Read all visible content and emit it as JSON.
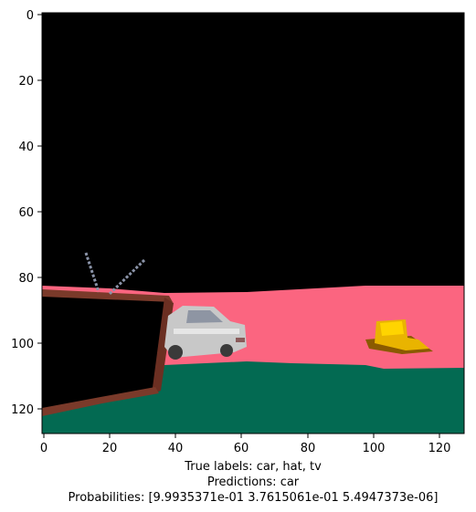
{
  "image_panel": {
    "x_ticks": [
      "0",
      "20",
      "40",
      "60",
      "80",
      "100",
      "120"
    ],
    "y_ticks": [
      "0",
      "20",
      "40",
      "60",
      "80",
      "100",
      "120"
    ],
    "scene_colors": {
      "background": "#000000",
      "wall": "#fb6580",
      "ground": "#036a52",
      "tv_frame": "#7a3a2a",
      "car_body": "#c8c8c8",
      "hat": "#e9b400"
    }
  },
  "caption": {
    "true_labels": "True labels: car, hat, tv",
    "predictions": "Predictions: car",
    "probabilities": "Probabilities: [9.9935371e-01 3.7615061e-01 5.4947373e-06]"
  }
}
